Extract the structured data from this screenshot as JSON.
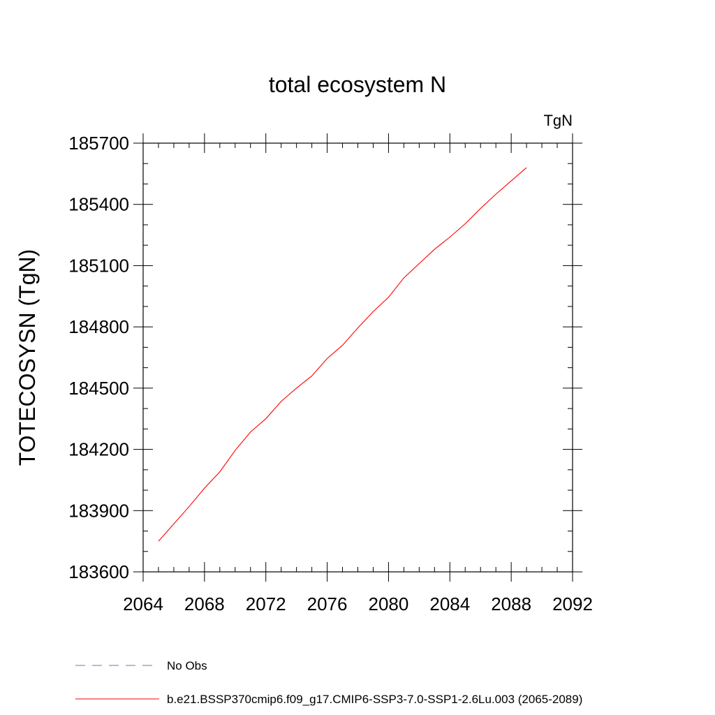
{
  "chart_data": {
    "type": "line",
    "title": "total ecosystem N",
    "units_label": "TgN",
    "xlabel": "",
    "ylabel": "TOTECOSYSN  (TgN)",
    "xlim": [
      2064,
      2092
    ],
    "ylim": [
      183600,
      185700
    ],
    "xticks": [
      2064,
      2068,
      2072,
      2076,
      2080,
      2084,
      2088,
      2092
    ],
    "yticks": [
      183600,
      183900,
      184200,
      184500,
      184800,
      185100,
      185400,
      185700
    ],
    "x_minor_step": 1,
    "y_minor_step": 100,
    "legend_position": "bottom",
    "series": [
      {
        "name": "No Obs",
        "color": "#7b6fb0",
        "dash": "dashed",
        "x": [],
        "values": []
      },
      {
        "name": "b.e21.BSSP370cmip6.f09_g17.CMIP6-SSP3-7.0-SSP1-2.6Lu.003 (2065-2089)",
        "color": "#ff0000",
        "dash": "solid",
        "x": [
          2065,
          2066,
          2067,
          2068,
          2069,
          2070,
          2071,
          2072,
          2073,
          2074,
          2075,
          2076,
          2077,
          2078,
          2079,
          2080,
          2081,
          2082,
          2083,
          2084,
          2085,
          2086,
          2087,
          2088,
          2089
        ],
        "values": [
          183750,
          183835,
          183920,
          184010,
          184090,
          184195,
          184285,
          184350,
          184435,
          184500,
          184560,
          184645,
          184710,
          184795,
          184875,
          184945,
          185040,
          185110,
          185180,
          185240,
          185305,
          185380,
          185450,
          185515,
          185580
        ]
      }
    ]
  }
}
